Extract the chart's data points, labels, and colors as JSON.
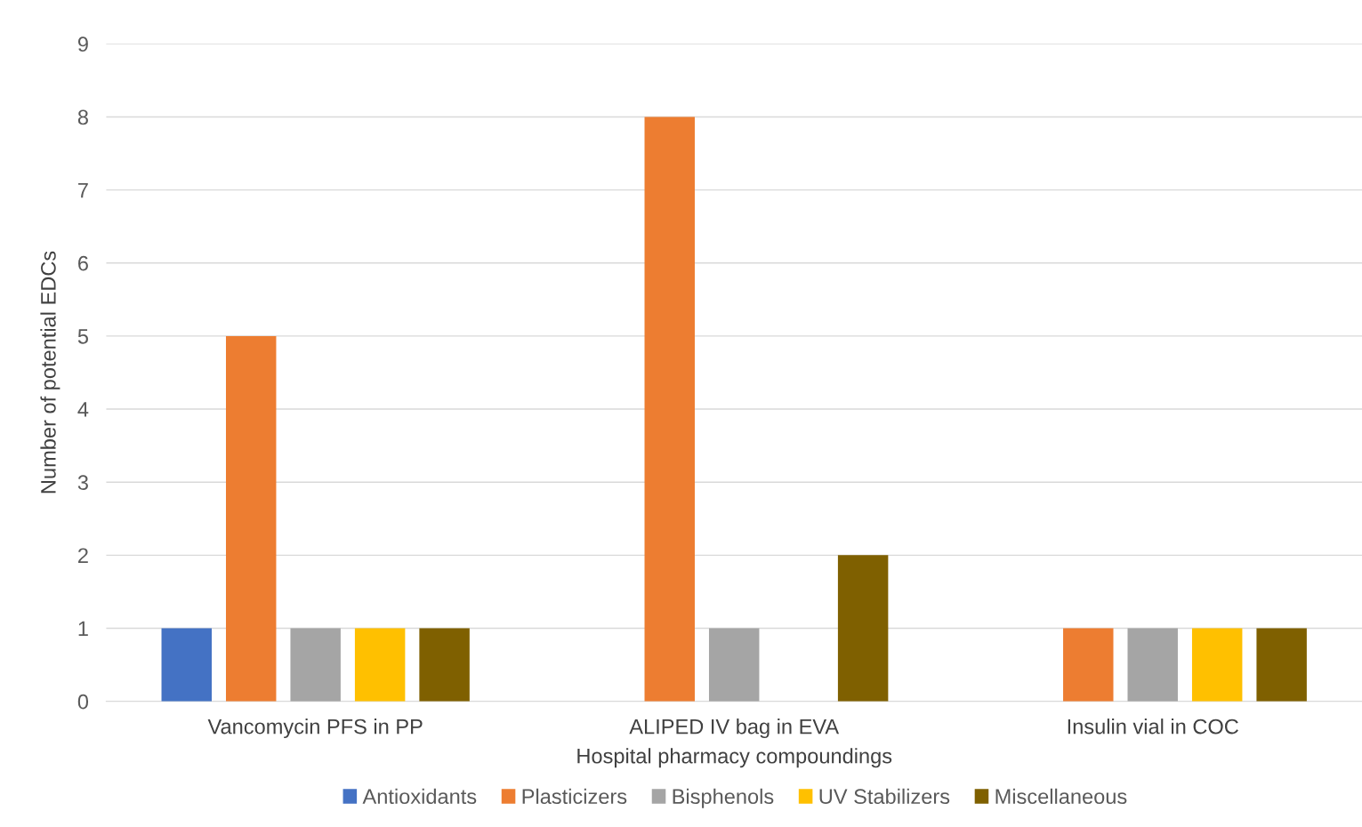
{
  "chart_data": {
    "type": "bar",
    "xlabel": "Hospital pharmacy compoundings",
    "ylabel": "Number of potential EDCs",
    "categories": [
      "Vancomycin PFS in PP",
      "ALIPED IV bag in EVA",
      "Insulin vial in COC"
    ],
    "series": [
      {
        "name": "Antioxidants",
        "color": "#4472c4",
        "values": [
          1,
          null,
          null
        ]
      },
      {
        "name": "Plasticizers",
        "color": "#ed7d31",
        "values": [
          5,
          8,
          1
        ]
      },
      {
        "name": "Bisphenols",
        "color": "#a5a5a5",
        "values": [
          1,
          1,
          1
        ]
      },
      {
        "name": "UV Stabilizers",
        "color": "#ffc000",
        "values": [
          1,
          null,
          1
        ]
      },
      {
        "name": "Miscellaneous",
        "color": "#7f6000",
        "values": [
          1,
          2,
          1
        ]
      }
    ],
    "ylim": [
      0,
      9
    ],
    "yticks": [
      0,
      1,
      2,
      3,
      4,
      5,
      6,
      7,
      8,
      9
    ],
    "grid": "y",
    "legend": "bottom"
  }
}
